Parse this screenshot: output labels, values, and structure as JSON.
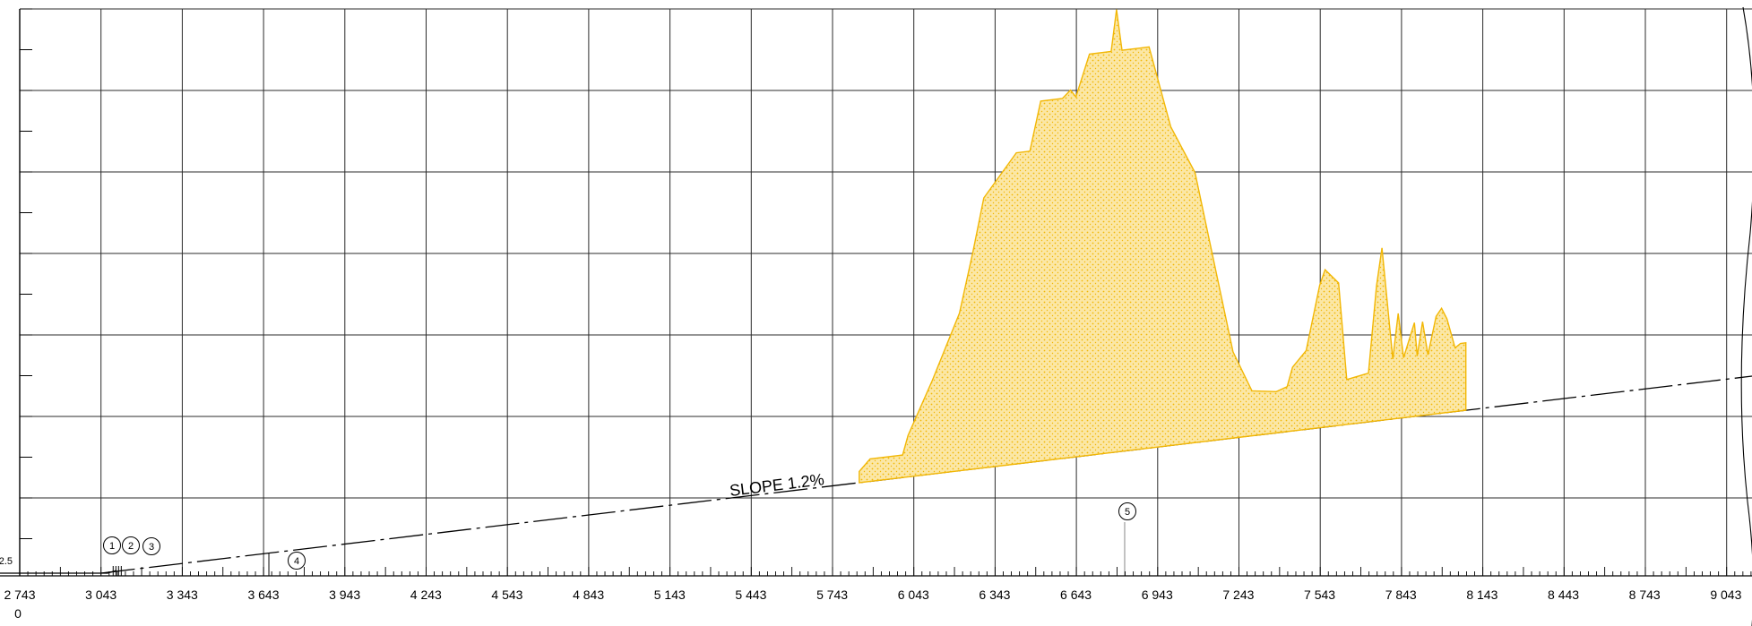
{
  "chart_data": {
    "type": "area",
    "title": "",
    "xlabel": "",
    "ylabel": "",
    "x_tick_labels": [
      "2 743",
      "3 043",
      "3 343",
      "3 643",
      "3 943",
      "4 243",
      "4 543",
      "4 843",
      "5 143",
      "5 443",
      "5 743",
      "6 043",
      "6 343",
      "6 643",
      "6 943",
      "7 243",
      "7 543",
      "7 843",
      "8 143",
      "8 443",
      "8 743",
      "9 043"
    ],
    "x_ticks": [
      2743,
      3043,
      3343,
      3643,
      3943,
      4243,
      4543,
      4843,
      5143,
      5443,
      5743,
      6043,
      6343,
      6643,
      6943,
      7243,
      7543,
      7843,
      8143,
      8443,
      8743,
      9043
    ],
    "xlim": [
      2743,
      9243
    ],
    "origin_elevation_label": "0",
    "y_axis_label_visible": "2.5",
    "grid": true,
    "annotation": "SLOPE 1.2%",
    "callouts": [
      "1",
      "2",
      "3",
      "4",
      "5"
    ],
    "colors": {
      "fill": "#f5c542",
      "outline": "#f2b705",
      "line": "#000000",
      "grid": "#2b2b2b"
    },
    "series": [
      {
        "name": "",
        "x": [
          5843,
          5883,
          6003,
          6023,
          6113,
          6213,
          6263,
          6303,
          6423,
          6473,
          6513,
          6593,
          6623,
          6643,
          6693,
          6773,
          6793,
          6813,
          6913,
          6993,
          7083,
          7223,
          7293,
          7383,
          7423,
          7443,
          7493,
          7543,
          7563,
          7613,
          7643,
          7723,
          7753,
          7773,
          7813,
          7833,
          7853,
          7893,
          7903,
          7923,
          7943,
          7973,
          7993,
          8013,
          8043,
          8063,
          8083
        ],
        "y": [
          0.3,
          0.6,
          0.6,
          1.1,
          2.5,
          4.2,
          5.8,
          7.2,
          8.3,
          8.3,
          9.6,
          9.6,
          9.8,
          9.6,
          10.7,
          10.7,
          11.8,
          10.7,
          10.7,
          8.5,
          7.2,
          2.3,
          1.2,
          1.1,
          1.2,
          1.7,
          2.1,
          3.8,
          4.2,
          3.8,
          1.2,
          1.3,
          3.6,
          4.6,
          1.6,
          2.8,
          1.6,
          2.5,
          1.6,
          2.5,
          1.6,
          2.6,
          2.8,
          2.5,
          1.7,
          1.8,
          1.8
        ]
      }
    ]
  }
}
